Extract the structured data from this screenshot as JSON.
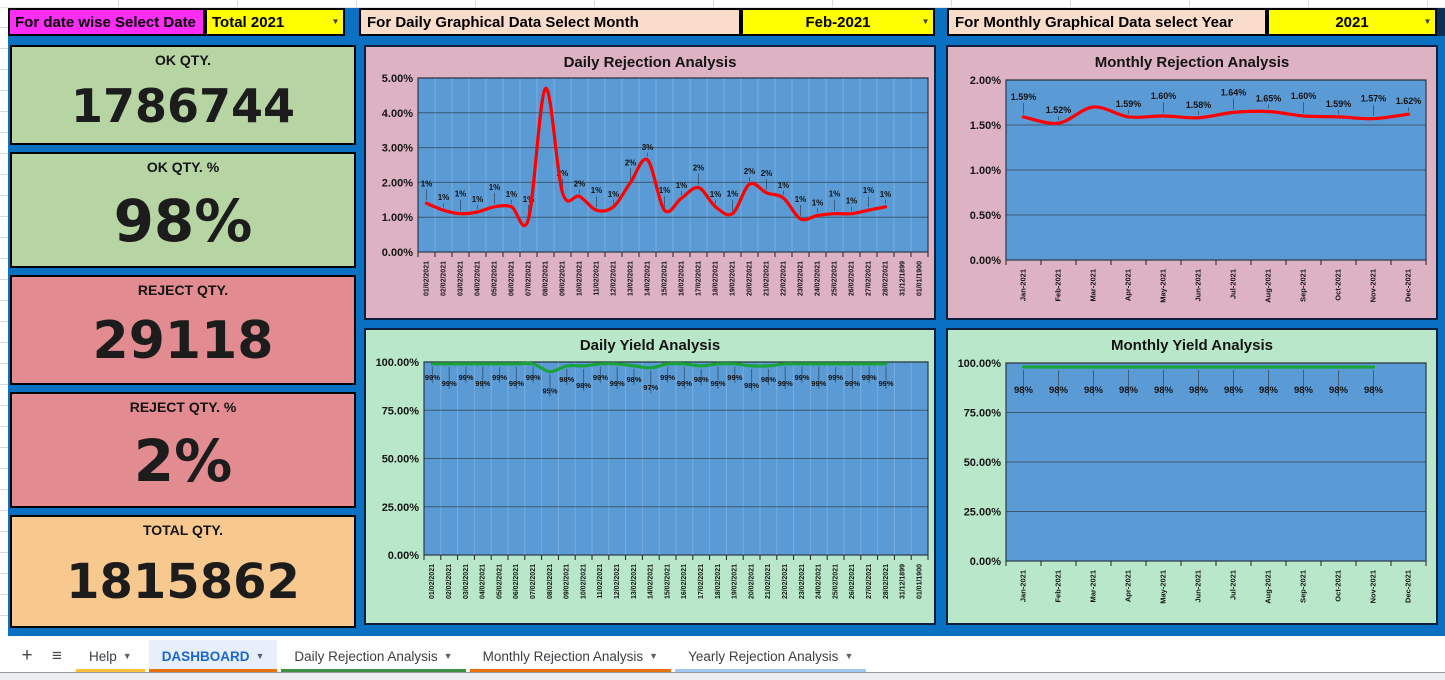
{
  "selector_bar": {
    "date_label": "For date wise Select Date",
    "date_value": "Total 2021",
    "month_label": "For Daily Graphical Data Select Month",
    "month_value": "Feb-2021",
    "year_label": "For Monthly Graphical Data select Year",
    "year_value": "2021"
  },
  "kpi_cards": [
    {
      "title": "OK QTY.",
      "value": "1786744",
      "color": "#b6d5a3",
      "value_size": 46
    },
    {
      "title": "OK QTY. %",
      "value": "98%",
      "color": "#b6d5a3",
      "value_size": 58
    },
    {
      "title": "REJECT QTY.",
      "value": "29118",
      "color": "#e28b90",
      "value_size": 52
    },
    {
      "title": "REJECT QTY. %",
      "value": "2%",
      "color": "#e28b90",
      "value_size": 58
    },
    {
      "title": "TOTAL QTY.",
      "value": "1815862",
      "color": "#f8c98e",
      "value_size": 48
    }
  ],
  "colors": {
    "dashboard_bg": "#0a70c2",
    "plot_bg": "#5b9bd5",
    "rejection_panel_bg": "#ddb2c3",
    "yield_panel_bg": "#b9e7ca",
    "rejection_line": "#ff0000",
    "yield_line": "#1aa33c",
    "selector_magenta": "#fd2df5",
    "selector_yellow": "#ffff00",
    "selector_peach": "#fadcca"
  },
  "chart_data": [
    {
      "id": "daily-rejection",
      "type": "line",
      "title": "Daily Rejection Analysis",
      "panel_bg": "#ddb2c3",
      "plot_bg": "#5b9bd5",
      "line_color": "#ff0000",
      "ylim": [
        0,
        5
      ],
      "y_ticks": [
        {
          "v": 0,
          "label": "0.00%"
        },
        {
          "v": 1,
          "label": "1.00%"
        },
        {
          "v": 2,
          "label": "2.00%"
        },
        {
          "v": 3,
          "label": "3.00%"
        },
        {
          "v": 4,
          "label": "4.00%"
        },
        {
          "v": 5,
          "label": "5.00%"
        }
      ],
      "categories": [
        "01/02/2021",
        "02/02/2021",
        "03/02/2021",
        "04/02/2021",
        "05/02/2021",
        "06/02/2021",
        "07/02/2021",
        "08/02/2021",
        "09/02/2021",
        "10/02/2021",
        "11/02/2021",
        "12/02/2021",
        "13/02/2021",
        "14/02/2021",
        "15/02/2021",
        "16/02/2021",
        "17/02/2021",
        "18/02/2021",
        "19/02/2021",
        "20/02/2021",
        "21/02/2021",
        "22/02/2021",
        "23/02/2021",
        "24/02/2021",
        "25/02/2021",
        "26/02/2021",
        "27/02/2021",
        "28/02/2021",
        "31/12/1899",
        "01/01/1900"
      ],
      "values": [
        1.4,
        1.2,
        1.1,
        1.15,
        1.3,
        1.3,
        0.95,
        4.7,
        1.7,
        1.6,
        1.2,
        1.3,
        2.0,
        2.65,
        1.2,
        1.55,
        1.85,
        1.3,
        1.1,
        1.95,
        1.7,
        1.55,
        0.95,
        1.05,
        1.1,
        1.1,
        1.2,
        1.3
      ],
      "point_labels": [
        "1%",
        "1%",
        "1%",
        "1%",
        "1%",
        "1%",
        "1%",
        "",
        "2%",
        "2%",
        "1%",
        "1%",
        "2%",
        "3%",
        "1%",
        "1%",
        "2%",
        "1%",
        "1%",
        "2%",
        "2%",
        "1%",
        "1%",
        "1%",
        "1%",
        "1%",
        "1%",
        "1%"
      ],
      "label_pos": "above",
      "grid": true,
      "legend": "none"
    },
    {
      "id": "monthly-rejection",
      "type": "line",
      "title": "Monthly Rejection Analysis",
      "panel_bg": "#ddb2c3",
      "plot_bg": "#5b9bd5",
      "line_color": "#ff0000",
      "ylim": [
        0,
        2
      ],
      "y_ticks": [
        {
          "v": 0,
          "label": "0.00%"
        },
        {
          "v": 0.5,
          "label": "0.50%"
        },
        {
          "v": 1,
          "label": "1.00%"
        },
        {
          "v": 1.5,
          "label": "1.50%"
        },
        {
          "v": 2,
          "label": "2.00%"
        }
      ],
      "categories": [
        "Jan-2021",
        "Feb-2021",
        "Mar-2021",
        "Apr-2021",
        "May-2021",
        "Jun-2021",
        "Jul-2021",
        "Aug-2021",
        "Sep-2021",
        "Oct-2021",
        "Nov-2021",
        "Dec-2021"
      ],
      "values": [
        1.59,
        1.52,
        1.7,
        1.59,
        1.6,
        1.58,
        1.64,
        1.65,
        1.6,
        1.59,
        1.57,
        1.62
      ],
      "point_labels": [
        "1.59%",
        "1.52%",
        "",
        "1.59%",
        "1.60%",
        "1.58%",
        "1.64%",
        "1.65%",
        "1.60%",
        "1.59%",
        "1.57%",
        "1.62%"
      ],
      "label_pos": "above",
      "grid": true,
      "legend": "none"
    },
    {
      "id": "daily-yield",
      "type": "line",
      "title": "Daily Yield Analysis",
      "panel_bg": "#b9e7ca",
      "plot_bg": "#5b9bd5",
      "line_color": "#1aa33c",
      "ylim": [
        0,
        100
      ],
      "y_ticks": [
        {
          "v": 0,
          "label": "0.00%"
        },
        {
          "v": 25,
          "label": "25.00%"
        },
        {
          "v": 50,
          "label": "50.00%"
        },
        {
          "v": 75,
          "label": "75.00%"
        },
        {
          "v": 100,
          "label": "100.00%"
        }
      ],
      "categories": [
        "01/02/2021",
        "02/02/2021",
        "03/02/2021",
        "04/02/2021",
        "05/02/2021",
        "06/02/2021",
        "07/02/2021",
        "08/02/2021",
        "09/02/2021",
        "10/02/2021",
        "11/02/2021",
        "12/02/2021",
        "13/02/2021",
        "14/02/2021",
        "15/02/2021",
        "16/02/2021",
        "17/02/2021",
        "18/02/2021",
        "19/02/2021",
        "20/02/2021",
        "21/02/2021",
        "22/02/2021",
        "23/02/2021",
        "24/02/2021",
        "25/02/2021",
        "26/02/2021",
        "27/02/2021",
        "28/02/2021",
        "31/12/1899",
        "01/01/1900"
      ],
      "values": [
        99,
        99,
        99,
        99,
        99,
        99,
        99,
        95,
        98,
        98,
        99,
        99,
        98,
        97,
        99,
        99,
        98,
        99,
        99,
        98,
        98,
        99,
        99,
        99,
        99,
        99,
        99,
        99
      ],
      "point_labels": [
        "99%",
        "99%",
        "99%",
        "99%",
        "99%",
        "99%",
        "99%",
        "95%",
        "98%",
        "98%",
        "99%",
        "99%",
        "98%",
        "97%",
        "99%",
        "99%",
        "98%",
        "99%",
        "99%",
        "98%",
        "98%",
        "99%",
        "99%",
        "99%",
        "99%",
        "99%",
        "99%",
        "99%"
      ],
      "label_pos": "below",
      "grid": true,
      "legend": "none"
    },
    {
      "id": "monthly-yield",
      "type": "line",
      "title": "Monthly Yield Analysis",
      "panel_bg": "#b9e7ca",
      "plot_bg": "#5b9bd5",
      "line_color": "#1aa33c",
      "ylim": [
        0,
        100
      ],
      "y_ticks": [
        {
          "v": 0,
          "label": "0.00%"
        },
        {
          "v": 25,
          "label": "25.00%"
        },
        {
          "v": 50,
          "label": "50.00%"
        },
        {
          "v": 75,
          "label": "75.00%"
        },
        {
          "v": 100,
          "label": "100.00%"
        }
      ],
      "categories": [
        "Jan-2021",
        "Feb-2021",
        "Mar-2021",
        "Apr-2021",
        "May-2021",
        "Jun-2021",
        "Jul-2021",
        "Aug-2021",
        "Sep-2021",
        "Oct-2021",
        "Nov-2021",
        "Dec-2021"
      ],
      "values": [
        98,
        98,
        98,
        98,
        98,
        98,
        98,
        98,
        98,
        98,
        98
      ],
      "point_labels": [
        "98%",
        "98%",
        "98%",
        "98%",
        "98%",
        "98%",
        "98%",
        "98%",
        "98%",
        "98%",
        "98%"
      ],
      "label_pos": "below",
      "grid": true,
      "legend": "none"
    }
  ],
  "sheet_tabs": {
    "add_button": "+",
    "menu_button": "≡",
    "items": [
      {
        "label": "Help",
        "active": false,
        "underline": "#fdc13b"
      },
      {
        "label": "DASHBOARD",
        "active": true,
        "underline": "#e8710a"
      },
      {
        "label": "Daily Rejection Analysis",
        "active": false,
        "underline": "#3d9144"
      },
      {
        "label": "Monthly Rejection Analysis",
        "active": false,
        "underline": "#e8710a"
      },
      {
        "label": "Yearly Rejection Analysis",
        "active": false,
        "underline": "#a3c9f2"
      }
    ]
  }
}
